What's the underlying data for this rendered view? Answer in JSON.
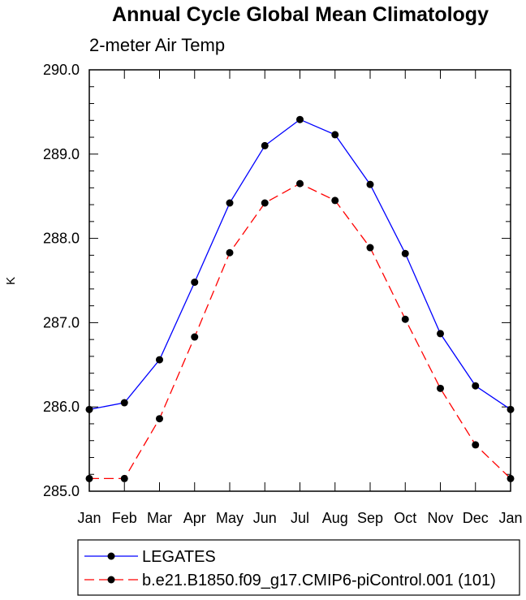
{
  "chart_data": {
    "type": "line",
    "title": "Annual Cycle Global Mean Climatology",
    "subtitle": "2-meter Air Temp",
    "ylabel": "K",
    "xlabel": "",
    "categories": [
      "Jan",
      "Feb",
      "Mar",
      "Apr",
      "May",
      "Jun",
      "Jul",
      "Aug",
      "Sep",
      "Oct",
      "Nov",
      "Dec",
      "Jan"
    ],
    "ylim": [
      285.0,
      290.0
    ],
    "yticks": [
      "285.0",
      "286.0",
      "287.0",
      "288.0",
      "289.0",
      "290.0"
    ],
    "grid": false,
    "legend_position": "bottom",
    "series": [
      {
        "name": "LEGATES",
        "color": "#0000ff",
        "dash": "solid",
        "marker": "filled-circle",
        "values": [
          285.97,
          286.05,
          286.56,
          287.48,
          288.42,
          289.1,
          289.41,
          289.23,
          288.64,
          287.82,
          286.87,
          286.25,
          285.97
        ]
      },
      {
        "name": "b.e21.B1850.f09_g17.CMIP6-piControl.001 (101)",
        "color": "#ff0000",
        "dash": "dashed",
        "marker": "filled-circle",
        "values": [
          285.15,
          285.15,
          285.86,
          286.83,
          287.83,
          288.42,
          288.65,
          288.45,
          287.89,
          287.04,
          286.22,
          285.55,
          285.15
        ]
      }
    ]
  }
}
